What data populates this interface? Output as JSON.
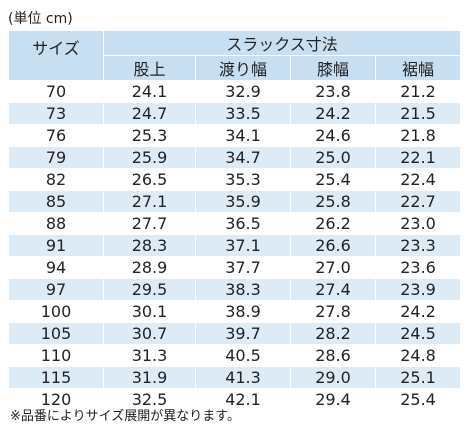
{
  "unit_note": "(単位 cm)",
  "table": {
    "size_header": "サイズ",
    "group_header": "スラックス寸法",
    "columns": [
      "股上",
      "渡り幅",
      "膝幅",
      "裾幅"
    ],
    "rows": [
      [
        "70",
        "24.1",
        "32.9",
        "23.8",
        "21.2"
      ],
      [
        "73",
        "24.7",
        "33.5",
        "24.2",
        "21.5"
      ],
      [
        "76",
        "25.3",
        "34.1",
        "24.6",
        "21.8"
      ],
      [
        "79",
        "25.9",
        "34.7",
        "25.0",
        "22.1"
      ],
      [
        "82",
        "26.5",
        "35.3",
        "25.4",
        "22.4"
      ],
      [
        "85",
        "27.1",
        "35.9",
        "25.8",
        "22.7"
      ],
      [
        "88",
        "27.7",
        "36.5",
        "26.2",
        "23.0"
      ],
      [
        "91",
        "28.3",
        "37.1",
        "26.6",
        "23.3"
      ],
      [
        "94",
        "28.9",
        "37.7",
        "27.0",
        "23.6"
      ],
      [
        "97",
        "29.5",
        "38.3",
        "27.4",
        "23.9"
      ],
      [
        "100",
        "30.1",
        "38.9",
        "27.8",
        "24.2"
      ],
      [
        "105",
        "30.7",
        "39.7",
        "28.2",
        "24.5"
      ],
      [
        "110",
        "31.3",
        "40.5",
        "28.6",
        "24.8"
      ],
      [
        "115",
        "31.9",
        "41.3",
        "29.0",
        "25.1"
      ],
      [
        "120",
        "32.5",
        "42.1",
        "29.4",
        "25.4"
      ]
    ]
  },
  "footnote": "※品番によりサイズ展開が異なります。"
}
